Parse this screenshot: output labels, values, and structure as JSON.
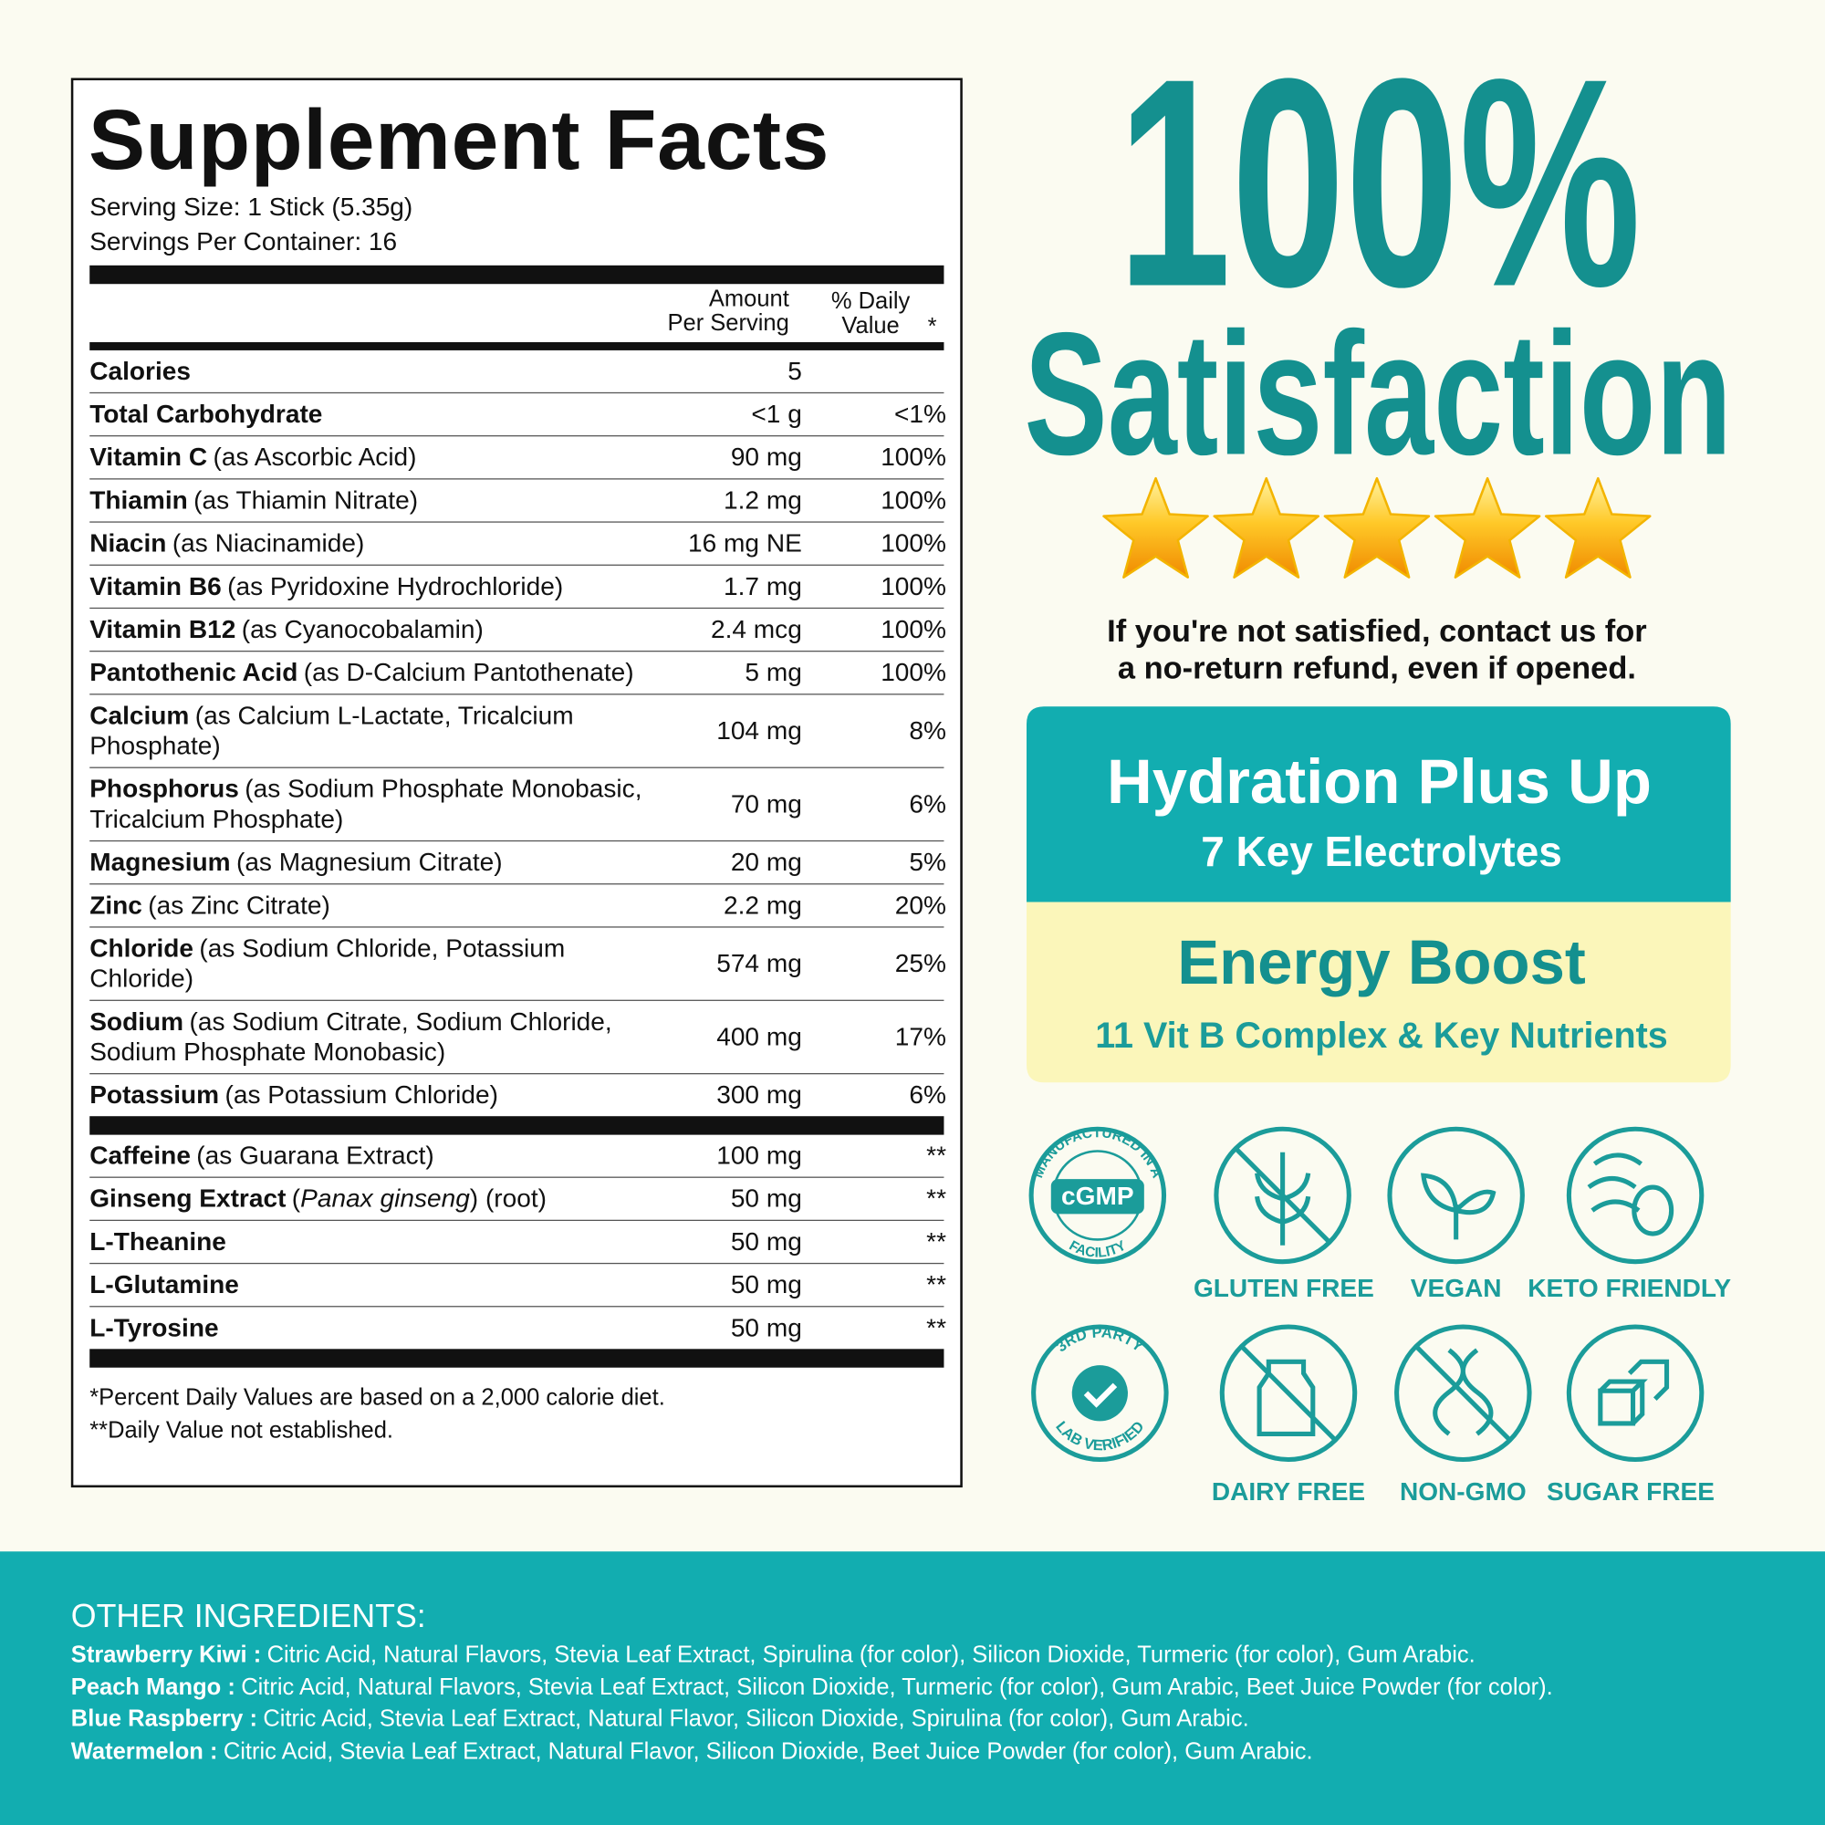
{
  "supplement_facts": {
    "title": "Supplement Facts",
    "serving_size": "Serving Size: 1 Stick (5.35g)",
    "servings_per_container": "Servings Per Container: 16",
    "amount_header": [
      "Amount",
      "Per Serving"
    ],
    "daily_value_header": [
      "% Daily",
      "Value",
      "*"
    ],
    "sections": [
      [
        {
          "name": "Calories",
          "amount": "5"
        },
        {
          "name": "Total Carbohydrate",
          "amount": "<1 g",
          "dv": "<1%"
        },
        {
          "name": "Vitamin C",
          "detail": "(as Ascorbic Acid)",
          "amount": "90 mg",
          "dv": "100%"
        },
        {
          "name": "Thiamin",
          "detail": "(as Thiamin Nitrate)",
          "amount": "1.2 mg",
          "dv": "100%"
        },
        {
          "name": "Niacin",
          "detail": "(as Niacinamide)",
          "amount": "16 mg NE",
          "dv": "100%"
        },
        {
          "name": "Vitamin B6",
          "detail": "(as Pyridoxine Hydrochloride)",
          "amount": "1.7 mg",
          "dv": "100%"
        },
        {
          "name": "Vitamin B12",
          "detail": "(as Cyanocobalamin)",
          "amount": "2.4 mcg",
          "dv": "100%"
        },
        {
          "name": "Pantothenic Acid",
          "detail": "(as D-Calcium Pantothenate)",
          "amount": "5 mg",
          "dv": "100%"
        },
        {
          "name": "Calcium",
          "detail": "(as Calcium L-Lactate, Tricalcium Phosphate)",
          "amount": "104 mg",
          "dv": "8%"
        },
        {
          "name": "Phosphorus",
          "detail": "(as Sodium Phosphate Monobasic, Tricalcium Phosphate)",
          "amount": "70 mg",
          "dv": "6%"
        },
        {
          "name": "Magnesium",
          "detail": "(as Magnesium Citrate)",
          "amount": "20 mg",
          "dv": "5%"
        },
        {
          "name": "Zinc",
          "detail": "(as Zinc Citrate)",
          "amount": "2.2 mg",
          "dv": "20%"
        },
        {
          "name": "Chloride",
          "detail": "(as Sodium Chloride, Potassium Chloride)",
          "amount": "574 mg",
          "dv": "25%"
        },
        {
          "name": "Sodium",
          "detail": "(as Sodium Citrate, Sodium Chloride, Sodium Phosphate Monobasic)",
          "amount": "400 mg",
          "dv": "17%"
        },
        {
          "name": "Potassium",
          "detail": "(as Potassium Chloride)",
          "amount": "300 mg",
          "dv": "6%"
        }
      ],
      [
        {
          "name": "Caffeine",
          "detail": "(as Guarana Extract)",
          "amount": "100 mg",
          "dv": "**"
        },
        {
          "name": "Ginseng Extract",
          "detail_parts": [
            {
              "text": "("
            },
            {
              "text": "Panax ginseng",
              "italic": true
            },
            {
              "text": ") (root)"
            }
          ],
          "amount": "50 mg",
          "dv": "**"
        },
        {
          "name": "L-Theanine",
          "amount": "50 mg",
          "dv": "**"
        },
        {
          "name": "L-Glutamine",
          "amount": "50 mg",
          "dv": "**"
        },
        {
          "name": "L-Tyrosine",
          "amount": "50 mg",
          "dv": "**"
        }
      ]
    ],
    "footnotes": [
      "*Percent Daily Values are based on a 2,000 calorie diet.",
      "**Daily Value not established."
    ]
  },
  "satisfaction": {
    "headline": "100%",
    "subheadline": "Satisfaction",
    "stars": 5,
    "guarantee": [
      "If you're not satisfied, contact us for",
      "a no-return refund, even if opened."
    ]
  },
  "highlights": [
    {
      "title": "Hydration Plus Up",
      "subtitle": "7 Key Electrolytes"
    },
    {
      "title": "Energy Boost",
      "subtitle": "11 Vit B Complex & Key Nutrients"
    }
  ],
  "badges": {
    "cgmp": {
      "arc_top": "MANUFACTURED IN A",
      "center": "cGMP",
      "arc_bottom": "FACILITY"
    },
    "lab": {
      "arc_top": "3RD PARTY",
      "arc_bottom": "LAB VERIFIED"
    }
  },
  "icons": [
    "GLUTEN FREE",
    "VEGAN",
    "KETO FRIENDLY",
    "DAIRY FREE",
    "NON-GMO",
    "SUGAR FREE"
  ],
  "other_ingredients": {
    "title": "OTHER INGREDIENTS:",
    "items": [
      {
        "flavor": "Strawberry Kiwi :",
        "text": "Citric Acid, Natural Flavors, Stevia Leaf Extract, Spirulina (for color), Silicon Dioxide, Turmeric (for color), Gum Arabic."
      },
      {
        "flavor": "Peach Mango :",
        "text": "Citric Acid, Natural Flavors, Stevia Leaf Extract, Silicon Dioxide, Turmeric (for color), Gum Arabic, Beet Juice Powder (for color)."
      },
      {
        "flavor": "Blue Raspberry :",
        "text": "Citric Acid, Stevia Leaf Extract, Natural Flavor, Silicon Dioxide, Spirulina (for color), Gum Arabic."
      },
      {
        "flavor": "Watermelon :",
        "text": "Citric Acid, Stevia Leaf Extract, Natural Flavor, Silicon Dioxide, Beet Juice Powder (for color), Gum Arabic."
      }
    ]
  }
}
